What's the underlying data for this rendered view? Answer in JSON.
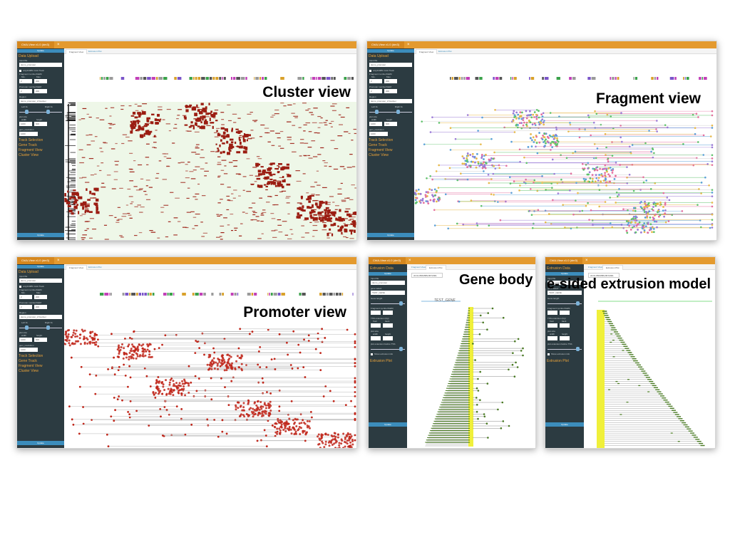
{
  "panels": [
    {
      "id": "cluster",
      "title": "Cluster view",
      "app_tab": "ChIA-View v1.0 (dm3)",
      "tab_close": "×",
      "sidebar_top_button": "Update",
      "sidebar_bottom_button": "Update",
      "tabs": [
        "Fragment View",
        "Extrusion Plot"
      ],
      "sidebar": {
        "data_upload": "Data Upload",
        "input_file": "Input file",
        "input_file_value": "demo_promoter",
        "checkbox": "only2448f1 GAA Track",
        "fragment_number": "Fragment number/GEM",
        "min": "Min.",
        "max": "Max.",
        "min_value": "2",
        "max_value": "200",
        "promoter_number": "Promoter number/GEM",
        "region": "Region",
        "region_value": "demo_promoter_2 fixedver",
        "left_fix": "Left fix",
        "right_fix": "Right fix",
        "plot_size": "plot size",
        "width": "width",
        "height": "height",
        "width_value": "1000",
        "height_value": "600",
        "gem_resolution": "gem_resolution",
        "resolution_value": "1000",
        "track_selection": "Track Selection",
        "gene_track": "Gene Track",
        "fragment_view": "Fragment View",
        "cluster_view": "Cluster View"
      }
    },
    {
      "id": "fragment",
      "title": "Fragment view",
      "app_tab": "ChIA-View v1.0 (dm3)",
      "tab_close": "×",
      "sidebar_top_button": "Update",
      "sidebar_bottom_button": "Update",
      "tabs": [
        "Fragment View",
        "Extrusion Plot"
      ],
      "sidebar": {
        "data_upload": "Data Upload",
        "input_file": "Input file",
        "input_file_value": "demo_promoter",
        "checkbox": "only2448f1 GAA Track",
        "fragment_number": "Fragment number/GEM",
        "min": "Min.",
        "max": "Max.",
        "min_value": "2",
        "max_value": "200",
        "promoter_number": "Promoter number/GEM",
        "region": "Region",
        "region_value": "demo_promoter_2 fixedver",
        "left_fix": "Left fix",
        "right_fix": "Right fix",
        "plot_size": "plot size",
        "width": "width",
        "height": "height",
        "width_value": "1000",
        "height_value": "600",
        "gem_resolution": "gem_resolution",
        "resolution_value": "1000",
        "track_selection": "Track Selection",
        "gene_track": "Gene Track",
        "fragment_view": "Fragment View",
        "cluster_view": "Cluster View"
      }
    },
    {
      "id": "promoter",
      "title": "Promoter view",
      "app_tab": "ChIA-View v1.0 (dm3)",
      "tab_close": "×",
      "sidebar_top_button": "Update",
      "sidebar_bottom_button": "Update",
      "tabs": [
        "Fragment View",
        "Extrusion Plot"
      ],
      "sidebar": {
        "data_upload": "Data Upload",
        "input_file": "Input file",
        "input_file_value": "demo_promoter",
        "checkbox": "only2448f1 GAA Track",
        "fragment_number": "Fragment number/GEM",
        "min": "Min.",
        "max": "Max.",
        "min_value": "2",
        "max_value": "200",
        "promoter_number": "Promoter number/GEM",
        "region": "Region",
        "region_value": "demo_promoter_2 fixedver",
        "left_fix": "Left fix",
        "right_fix": "Right fix",
        "plot_size": "plot size",
        "width": "width",
        "height": "height",
        "width_value": "1000",
        "height_value": "600",
        "gem_resolution": "gem_resolution",
        "resolution_value": "1000",
        "track_selection": "Track Selection",
        "gene_track": "Gene Track",
        "fragment_view": "Fragment View",
        "cluster_view": "Cluster View"
      }
    },
    {
      "id": "genebody",
      "title": "Gene body view",
      "app_tab": "ChIA-View v1.0 (dm3)",
      "tab_close": "×",
      "sidebar_top_button": "Update",
      "sidebar_bottom_button": "Update",
      "tabs": [
        "Fragment View",
        "Extrusion Plot"
      ],
      "search_value": "chr3L:8664589-8672001",
      "gene_label": "TEST_GENE",
      "sidebar": {
        "extrusion_data": "Extrusion Data",
        "input_file": "Input file",
        "input_file_value": "demo_promoter",
        "gene_select": "gene select",
        "gene_select_value": "TEST_GENE",
        "gene_length": "Gene length",
        "fragment_number": "Fragment number/GEM",
        "tss_extension": "TSS extension (bp)",
        "front": "front",
        "back": "back",
        "plot_size": "plot size",
        "width": "width",
        "height": "height",
        "plot_extension": "plot extension before TSS",
        "show_extrusion": "Show extrusion info",
        "extrusion_plot": "Extrusion Plot"
      }
    },
    {
      "id": "onesided",
      "title": "One-sided extrusion model",
      "app_tab": "ChIA-View v1.0 (dm3)",
      "tab_close": "×",
      "sidebar_top_button": "Update",
      "sidebar_bottom_button": "Update",
      "tabs": [
        "Fragment View",
        "Extrusion Plot"
      ],
      "search_value": "chr3L:8664589-8672001",
      "sidebar": {
        "extrusion_data": "Extrusion Data",
        "input_file": "Input file",
        "input_file_value": "demo_promoter",
        "gene_select": "gene select",
        "gene_select_value": "TEST_GENE",
        "gene_length": "Gene length",
        "fragment_number": "Fragment number/GEM",
        "tss_extension": "TSS extension (bp)",
        "front": "front",
        "back": "back",
        "plot_size": "plot size",
        "width": "width",
        "height": "height",
        "plot_extension": "plot extension before TSS",
        "show_extrusion": "Show extrusion info",
        "extrusion_plot": "Extrusion Plot"
      }
    }
  ],
  "colors": {
    "header": "#e49a2f",
    "sidebar": "#2c3b41",
    "sidebar_heading": "#e8a23a",
    "button": "#3c8dbc",
    "cluster_fill": "#9b1d12",
    "cluster_bg": "#eef7e8",
    "promoter_point": "#c0261a",
    "extrusion_line": "#4a7a24",
    "tss_band": "#f0f03a"
  }
}
